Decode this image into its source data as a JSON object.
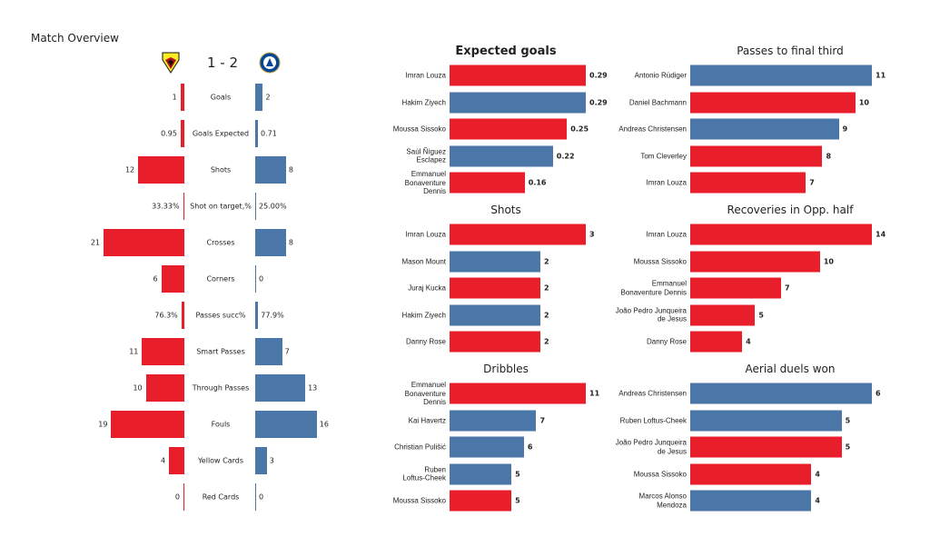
{
  "title": "Match Overview",
  "score": "1 - 2",
  "colors": {
    "home": "#e81e2a",
    "away": "#4a76a8"
  },
  "teams": {
    "home_logo": "watford-crest-icon",
    "away_logo": "chelsea-crest-icon"
  },
  "chart_data": [
    {
      "type": "bar",
      "title": "",
      "orientation": "diverging-horizontal",
      "categories": [
        "Goals",
        "Goals Expected",
        "Shots",
        "Shot on target,%",
        "Crosses",
        "Corners",
        "Passes succ%",
        "Smart Passes",
        "Through Passes",
        "Fouls",
        "Yellow Cards",
        "Red Cards"
      ],
      "series": [
        {
          "values": [
            1,
            0.95,
            12,
            0.3333,
            21,
            6,
            0.763,
            11,
            10,
            19,
            4,
            0
          ],
          "labels": [
            "1",
            "0.95",
            "12",
            "33.33%",
            "21",
            "6",
            "76.3%",
            "11",
            "10",
            "19",
            "4",
            "0"
          ]
        },
        {
          "values": [
            2,
            0.71,
            8,
            0.25,
            8,
            0,
            0.779,
            7,
            13,
            16,
            3,
            0
          ],
          "labels": [
            "2",
            "0.71",
            "8",
            "25.00%",
            "8",
            "0",
            "77.9%",
            "7",
            "13",
            "16",
            "3",
            "0"
          ]
        }
      ]
    },
    {
      "type": "bar",
      "title": "Expected goals",
      "bold": true,
      "players": [
        "Imran Louza",
        "Hakim Ziyech",
        "Moussa Sissoko",
        "Saúl Ñíguez\nEsclapez",
        "Emmanuel\nBonaventure\nDennis"
      ],
      "values": [
        0.29,
        0.29,
        0.25,
        0.22,
        0.16
      ],
      "labels": [
        "0.29",
        "0.29",
        "0.25",
        "0.22",
        "0.16"
      ],
      "teams": [
        "home",
        "away",
        "home",
        "away",
        "home"
      ]
    },
    {
      "type": "bar",
      "title": "Shots",
      "players": [
        "Imran Louza",
        "Mason Mount",
        "Juraj Kucka",
        "Hakim Ziyech",
        "Danny Rose"
      ],
      "values": [
        3,
        2,
        2,
        2,
        2
      ],
      "labels": [
        "3",
        "2",
        "2",
        "2",
        "2"
      ],
      "teams": [
        "home",
        "away",
        "home",
        "away",
        "home"
      ]
    },
    {
      "type": "bar",
      "title": "Dribbles",
      "players": [
        "Emmanuel\nBonaventure\nDennis",
        "Kai Havertz",
        "Christian Pulišić",
        "Ruben\nLoftus-Cheek",
        "Moussa Sissoko"
      ],
      "values": [
        11,
        7,
        6,
        5,
        5
      ],
      "labels": [
        "11",
        "7",
        "6",
        "5",
        "5"
      ],
      "teams": [
        "home",
        "away",
        "away",
        "away",
        "home"
      ]
    },
    {
      "type": "bar",
      "title": "Passes to final third",
      "players": [
        "Antonio Rüdiger",
        "Daniel Bachmann",
        "Andreas Christensen",
        "Tom Cleverley",
        "Imran Louza"
      ],
      "values": [
        11,
        10,
        9,
        8,
        7
      ],
      "labels": [
        "11",
        "10",
        "9",
        "8",
        "7"
      ],
      "teams": [
        "away",
        "home",
        "away",
        "home",
        "home"
      ]
    },
    {
      "type": "bar",
      "title": "Recoveries in Opp. half",
      "players": [
        "Imran Louza",
        "Moussa Sissoko",
        "Emmanuel\nBonaventure Dennis",
        "João Pedro Junqueira\nde Jesus",
        "Danny Rose"
      ],
      "values": [
        14,
        10,
        7,
        5,
        4
      ],
      "labels": [
        "14",
        "10",
        "7",
        "5",
        "4"
      ],
      "teams": [
        "home",
        "home",
        "home",
        "home",
        "home"
      ]
    },
    {
      "type": "bar",
      "title": "Aerial duels won",
      "players": [
        "Andreas Christensen",
        "Ruben Loftus-Cheek",
        "João Pedro Junqueira\nde Jesus",
        "Moussa Sissoko",
        "Marcos  Alonso\nMendoza"
      ],
      "values": [
        6,
        5,
        5,
        4,
        4
      ],
      "labels": [
        "6",
        "5",
        "5",
        "4",
        "4"
      ],
      "teams": [
        "away",
        "away",
        "home",
        "home",
        "away"
      ]
    }
  ]
}
